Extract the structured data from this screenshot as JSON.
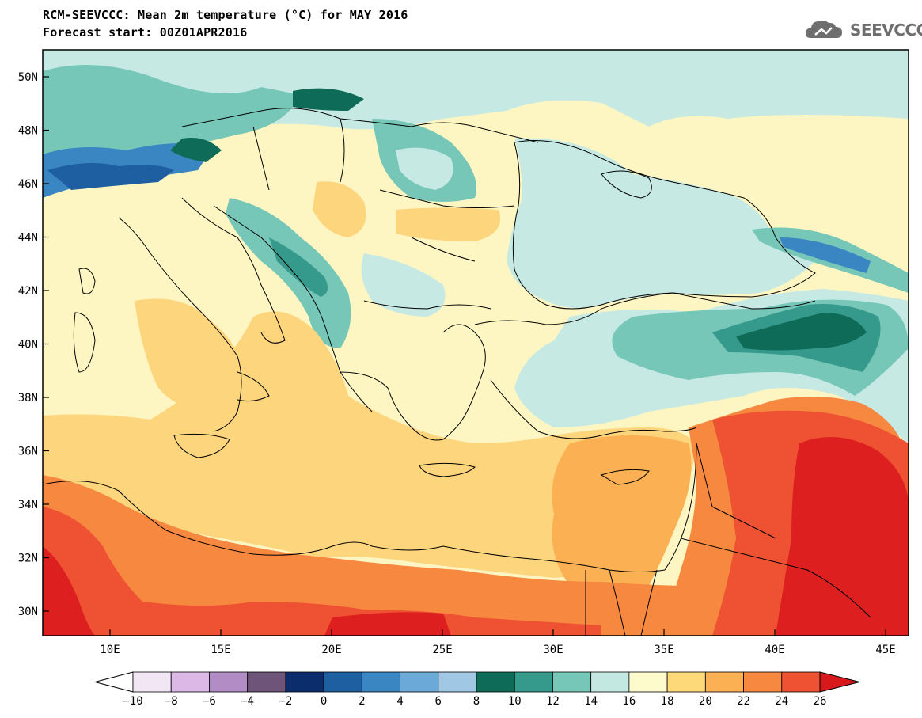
{
  "header": {
    "title": "RCM-SEEVCCC: Mean 2m temperature (°C) for MAY 2016",
    "subtitle": "Forecast start: 00Z01APR2016"
  },
  "logo": {
    "text": "SEEVCCC"
  },
  "map": {
    "region": "South-East Europe / Eastern Mediterranean",
    "lon_range": [
      7,
      46
    ],
    "lat_range": [
      29,
      51
    ],
    "lat_labels": [
      "50N",
      "48N",
      "46N",
      "44N",
      "42N",
      "40N",
      "38N",
      "36N",
      "34N",
      "32N",
      "30N"
    ],
    "lon_labels": [
      "10E",
      "15E",
      "20E",
      "25E",
      "30E",
      "35E",
      "40E",
      "45E"
    ]
  },
  "colorbar": {
    "labels": [
      "−10",
      "−8",
      "−6",
      "−4",
      "−2",
      "0",
      "2",
      "4",
      "6",
      "8",
      "10",
      "12",
      "14",
      "16",
      "18",
      "20",
      "22",
      "24",
      "26"
    ],
    "low_color": "#ffffff",
    "high_color": "#d7191c",
    "colors": [
      "#f2e6f5",
      "#dcb8e6",
      "#b28cc4",
      "#6e5478",
      "#0c2d6b",
      "#1d5fa0",
      "#3a86c2",
      "#6aa9d8",
      "#a0c8e4",
      "#0e6b57",
      "#35998c",
      "#76c7b8",
      "#c3e8e2",
      "#fdfbcc",
      "#fdd97a",
      "#fbb053",
      "#f68840",
      "#ee5232"
    ]
  },
  "style": {
    "sea_color": "#fdd57c",
    "land_warm": "#fdf6c3",
    "hot_color": "#f15a36",
    "hottest_color": "#dd1f1f",
    "cool_color": "#c6e9e4",
    "cold_color": "#0e6b57"
  }
}
